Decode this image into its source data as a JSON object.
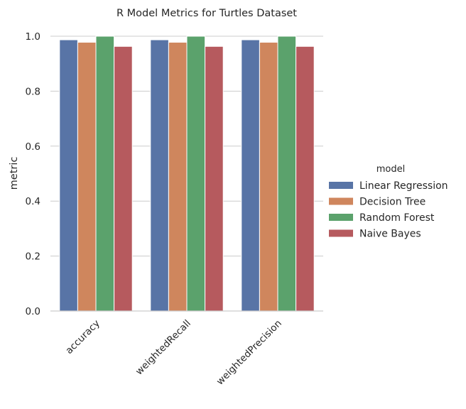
{
  "chart_data": {
    "type": "bar",
    "title": "R Model Metrics for Turtles Dataset",
    "xlabel": "",
    "ylabel": "metric",
    "categories": [
      "accuracy",
      "weightedRecall",
      "weightedPrecision"
    ],
    "ylim": [
      0,
      1.0
    ],
    "yticks": [
      "0.0",
      "0.2",
      "0.4",
      "0.6",
      "0.8",
      "1.0"
    ],
    "grid": true,
    "legend": {
      "title": "model",
      "placement": "right"
    },
    "series": [
      {
        "name": "Linear Regression",
        "color": "#5874a6",
        "values": [
          0.987,
          0.987,
          0.987
        ]
      },
      {
        "name": "Decision Tree",
        "color": "#cf865d",
        "values": [
          0.978,
          0.978,
          0.978
        ]
      },
      {
        "name": "Random Forest",
        "color": "#5ba26c",
        "values": [
          1.0,
          1.0,
          1.0
        ]
      },
      {
        "name": "Naive Bayes",
        "color": "#b65a5e",
        "values": [
          0.963,
          0.963,
          0.963
        ]
      }
    ]
  }
}
